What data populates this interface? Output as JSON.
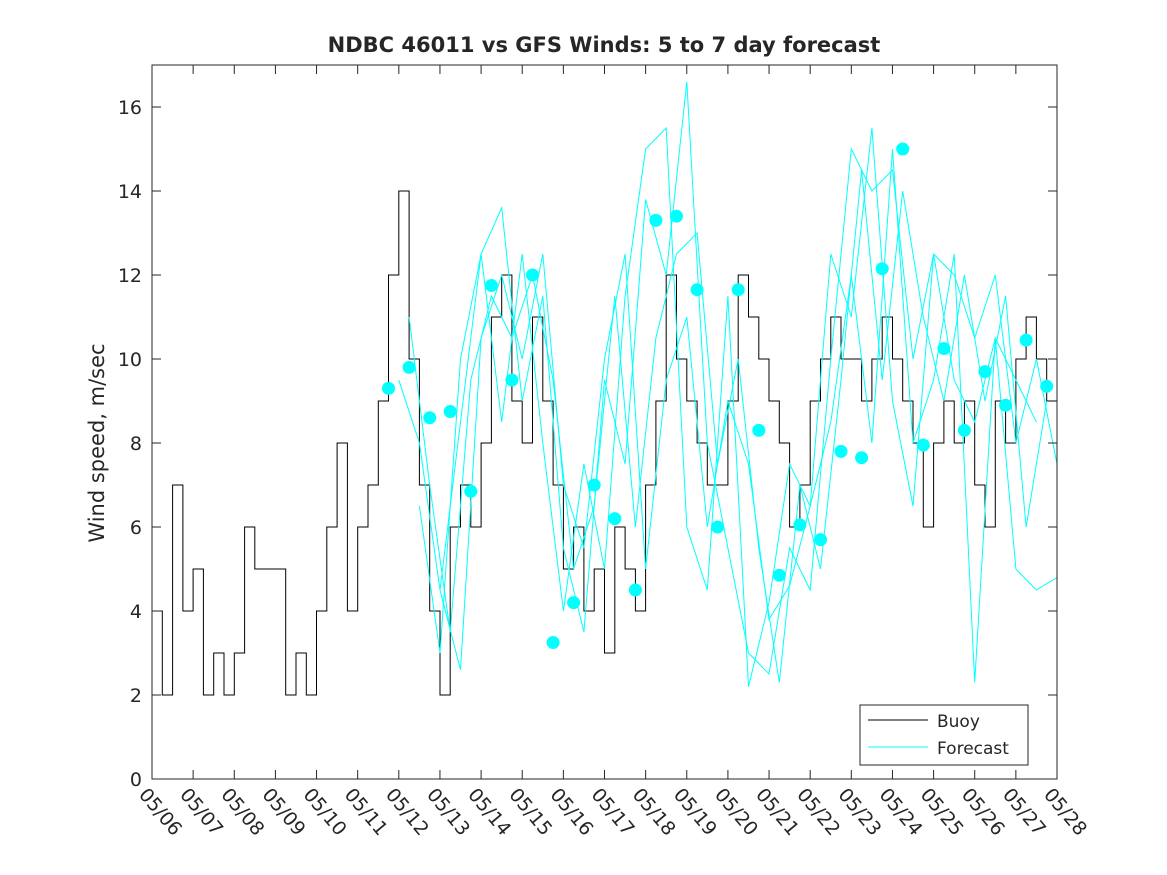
{
  "chart_data": {
    "type": "line",
    "title": "NDBC 46011 vs GFS Winds: 5 to 7 day forecast",
    "ylabel": "Wind speed, m/sec",
    "xlabel": "",
    "xlim": [
      "05/06",
      "05/28"
    ],
    "ylim": [
      0,
      17
    ],
    "x_ticks": [
      "05/06",
      "05/07",
      "05/08",
      "05/09",
      "05/10",
      "05/11",
      "05/12",
      "05/13",
      "05/14",
      "05/15",
      "05/16",
      "05/17",
      "05/18",
      "05/19",
      "05/20",
      "05/21",
      "05/22",
      "05/23",
      "05/24",
      "05/25",
      "05/26",
      "05/27",
      "05/28"
    ],
    "y_ticks": [
      "0",
      "2",
      "4",
      "6",
      "8",
      "10",
      "12",
      "14",
      "16"
    ],
    "grid": false,
    "legend": {
      "placement": "bottom-right",
      "entries": [
        "Buoy",
        "Forecast"
      ]
    },
    "colors": {
      "buoy": "#000000",
      "forecast": "#00ffff",
      "axes": "#262626"
    },
    "series": [
      {
        "name": "Buoy",
        "style": "step",
        "x": [
          "05/06 00",
          "05/06 06",
          "05/06 12",
          "05/06 18",
          "05/07 00",
          "05/07 06",
          "05/07 12",
          "05/07 18",
          "05/08 00",
          "05/08 06",
          "05/08 12",
          "05/08 18",
          "05/09 00",
          "05/09 06",
          "05/09 12",
          "05/09 18",
          "05/10 00",
          "05/10 06",
          "05/10 12",
          "05/10 18",
          "05/11 00",
          "05/11 06",
          "05/11 12",
          "05/11 18",
          "05/12 00",
          "05/12 06",
          "05/12 12",
          "05/12 18",
          "05/13 00",
          "05/13 06",
          "05/13 12",
          "05/13 18",
          "05/14 00",
          "05/14 06",
          "05/14 12",
          "05/14 18",
          "05/15 00",
          "05/15 06",
          "05/15 12",
          "05/15 18",
          "05/16 00",
          "05/16 06",
          "05/16 12",
          "05/16 18",
          "05/17 00",
          "05/17 06",
          "05/17 12",
          "05/17 18",
          "05/18 00",
          "05/18 06",
          "05/18 12",
          "05/18 18",
          "05/19 00",
          "05/19 06",
          "05/19 12",
          "05/19 18",
          "05/20 00",
          "05/20 06",
          "05/20 12",
          "05/20 18",
          "05/21 00",
          "05/21 06",
          "05/21 12",
          "05/21 18",
          "05/22 00",
          "05/22 06",
          "05/22 12",
          "05/22 18",
          "05/23 00",
          "05/23 06",
          "05/23 12",
          "05/23 18",
          "05/24 00",
          "05/24 06",
          "05/24 12",
          "05/24 18",
          "05/25 00",
          "05/25 06",
          "05/25 12",
          "05/25 18",
          "05/26 00",
          "05/26 06",
          "05/26 12",
          "05/26 18",
          "05/27 00",
          "05/27 06",
          "05/27 12",
          "05/27 18",
          "05/28 00"
        ],
        "values": [
          4,
          2,
          7,
          4,
          5,
          2,
          3,
          2,
          3,
          6,
          5,
          5,
          5,
          2,
          3,
          2,
          4,
          6,
          8,
          4,
          6,
          7,
          9,
          12,
          14,
          10,
          7,
          4,
          2,
          6,
          7,
          6,
          8,
          11,
          12,
          9,
          8,
          11,
          9,
          7,
          5,
          6,
          4,
          5,
          3,
          6,
          5,
          4,
          7,
          9,
          12,
          10,
          9,
          8,
          7,
          7,
          9,
          12,
          11,
          10,
          9,
          8,
          6,
          7,
          9,
          10,
          11,
          10,
          10,
          9,
          10,
          11,
          10,
          9,
          8,
          6,
          8,
          9,
          8,
          9,
          7,
          6,
          9,
          8,
          10,
          11,
          10,
          9,
          9
        ]
      },
      {
        "name": "Forecast",
        "style": "markers",
        "x": [
          "05/11 18",
          "05/12 06",
          "05/12 18",
          "05/13 06",
          "05/13 18",
          "05/14 06",
          "05/14 18",
          "05/15 06",
          "05/15 18",
          "05/16 06",
          "05/16 18",
          "05/17 06",
          "05/17 18",
          "05/18 06",
          "05/18 18",
          "05/19 06",
          "05/19 18",
          "05/20 06",
          "05/20 18",
          "05/21 06",
          "05/21 18",
          "05/22 06",
          "05/22 18",
          "05/23 06",
          "05/23 18",
          "05/24 06",
          "05/24 18",
          "05/25 06",
          "05/25 18",
          "05/26 06",
          "05/26 18",
          "05/27 06",
          "05/27 18"
        ],
        "values": [
          9.3,
          9.8,
          8.6,
          8.75,
          6.85,
          11.75,
          9.5,
          12.0,
          3.25,
          4.2,
          7.0,
          6.2,
          4.5,
          13.3,
          13.4,
          11.65,
          6.0,
          11.65,
          8.3,
          4.85,
          6.05,
          5.7,
          7.8,
          7.65,
          12.15,
          15.0,
          7.95,
          10.25,
          8.3,
          9.7,
          8.9,
          10.45,
          9.35
        ]
      },
      {
        "name": "Forecast",
        "style": "line",
        "x": [
          "05/13 00",
          "05/13 12",
          "05/14 00",
          "05/14 12",
          "05/15 00",
          "05/15 12",
          "05/16 00",
          "05/16 12",
          "05/17 00",
          "05/17 12",
          "05/18 00",
          "05/18 12",
          "05/19 00",
          "05/19 12",
          "05/20 00",
          "05/20 12",
          "05/21 00",
          "05/21 12",
          "05/22 00",
          "05/22 12",
          "05/23 00",
          "05/23 12",
          "05/24 00",
          "05/24 12",
          "05/25 00",
          "05/25 12",
          "05/26 00",
          "05/26 12",
          "05/27 00",
          "05/27 12",
          "05/28 00"
        ],
        "values": [
          4.5,
          8.5,
          12.5,
          13.6,
          9.0,
          11.5,
          5.5,
          3.5,
          9.5,
          7.5,
          13.8,
          12.0,
          16.6,
          8.0,
          5.5,
          3.0,
          2.5,
          5.5,
          4.5,
          10.0,
          15.0,
          14.0,
          14.5,
          10.0,
          12.5,
          12.0,
          10.5,
          12.0,
          8.0,
          10.0,
          7.5
        ]
      },
      {
        "name": "Forecast",
        "style": "line",
        "x": [
          "05/12 12",
          "05/13 00",
          "05/13 12",
          "05/14 00",
          "05/14 12",
          "05/15 00",
          "05/15 12",
          "05/16 00",
          "05/16 12",
          "05/17 00",
          "05/17 12",
          "05/18 00",
          "05/18 12",
          "05/19 00",
          "05/19 12",
          "05/20 00",
          "05/20 12",
          "05/21 00",
          "05/21 12",
          "05/22 00",
          "05/22 12",
          "05/23 00",
          "05/23 12",
          "05/24 00",
          "05/24 12",
          "05/25 00",
          "05/25 12",
          "05/26 00",
          "05/26 12",
          "05/27 00",
          "05/27 12",
          "05/28 00"
        ],
        "values": [
          6.5,
          3.0,
          10.0,
          12.5,
          8.5,
          12.5,
          8.0,
          4.0,
          7.5,
          5.0,
          11.5,
          15.0,
          15.5,
          6.0,
          4.5,
          11.5,
          2.2,
          4.2,
          7.5,
          6.5,
          12.5,
          11.0,
          15.5,
          9.0,
          6.5,
          12.5,
          9.5,
          8.5,
          10.5,
          5.0,
          4.5,
          4.8
        ]
      },
      {
        "name": "Forecast",
        "style": "line",
        "x": [
          "05/12 06",
          "05/12 18",
          "05/13 06",
          "05/13 18",
          "05/14 06",
          "05/14 18",
          "05/15 06",
          "05/15 18",
          "05/16 06",
          "05/16 18",
          "05/17 06",
          "05/17 18",
          "05/18 06",
          "05/18 18",
          "05/19 06",
          "05/19 18",
          "05/20 06",
          "05/20 18",
          "05/21 06",
          "05/21 18",
          "05/22 06",
          "05/22 18",
          "05/23 06",
          "05/23 18",
          "05/24 06",
          "05/24 18",
          "05/25 06",
          "05/25 18",
          "05/26 06",
          "05/26 18",
          "05/27 06",
          "05/27 18"
        ],
        "values": [
          11.0,
          7.0,
          3.5,
          9.5,
          11.5,
          10.5,
          12.0,
          9.5,
          5.0,
          6.5,
          11.5,
          6.0,
          10.5,
          12.5,
          13.0,
          7.5,
          10.0,
          5.5,
          2.3,
          7.0,
          5.0,
          9.5,
          14.5,
          9.5,
          14.0,
          11.0,
          9.0,
          12.0,
          9.0,
          11.5,
          6.0,
          9.0
        ]
      },
      {
        "name": "Forecast",
        "style": "line",
        "x": [
          "05/12 00",
          "05/12 12",
          "05/13 00",
          "05/13 12",
          "05/14 00",
          "05/14 12",
          "05/15 00",
          "05/15 12",
          "05/16 00",
          "05/16 12",
          "05/17 00",
          "05/17 12",
          "05/18 00",
          "05/18 12",
          "05/19 00",
          "05/19 12",
          "05/20 00",
          "05/20 12",
          "05/21 00",
          "05/21 12",
          "05/22 00",
          "05/22 12",
          "05/23 00",
          "05/23 12",
          "05/24 00",
          "05/24 12",
          "05/25 00",
          "05/25 12",
          "05/26 00",
          "05/26 12",
          "05/27 00",
          "05/27 12"
        ],
        "values": [
          9.5,
          8.0,
          4.5,
          2.6,
          10.5,
          12.0,
          10.0,
          12.5,
          7.0,
          5.5,
          10.0,
          12.5,
          5.0,
          9.5,
          11.0,
          6.0,
          9.0,
          7.5,
          3.8,
          4.6,
          6.5,
          8.5,
          12.0,
          8.0,
          15.0,
          8.0,
          9.5,
          12.5,
          2.3,
          10.5,
          9.5,
          8.5
        ]
      }
    ]
  }
}
